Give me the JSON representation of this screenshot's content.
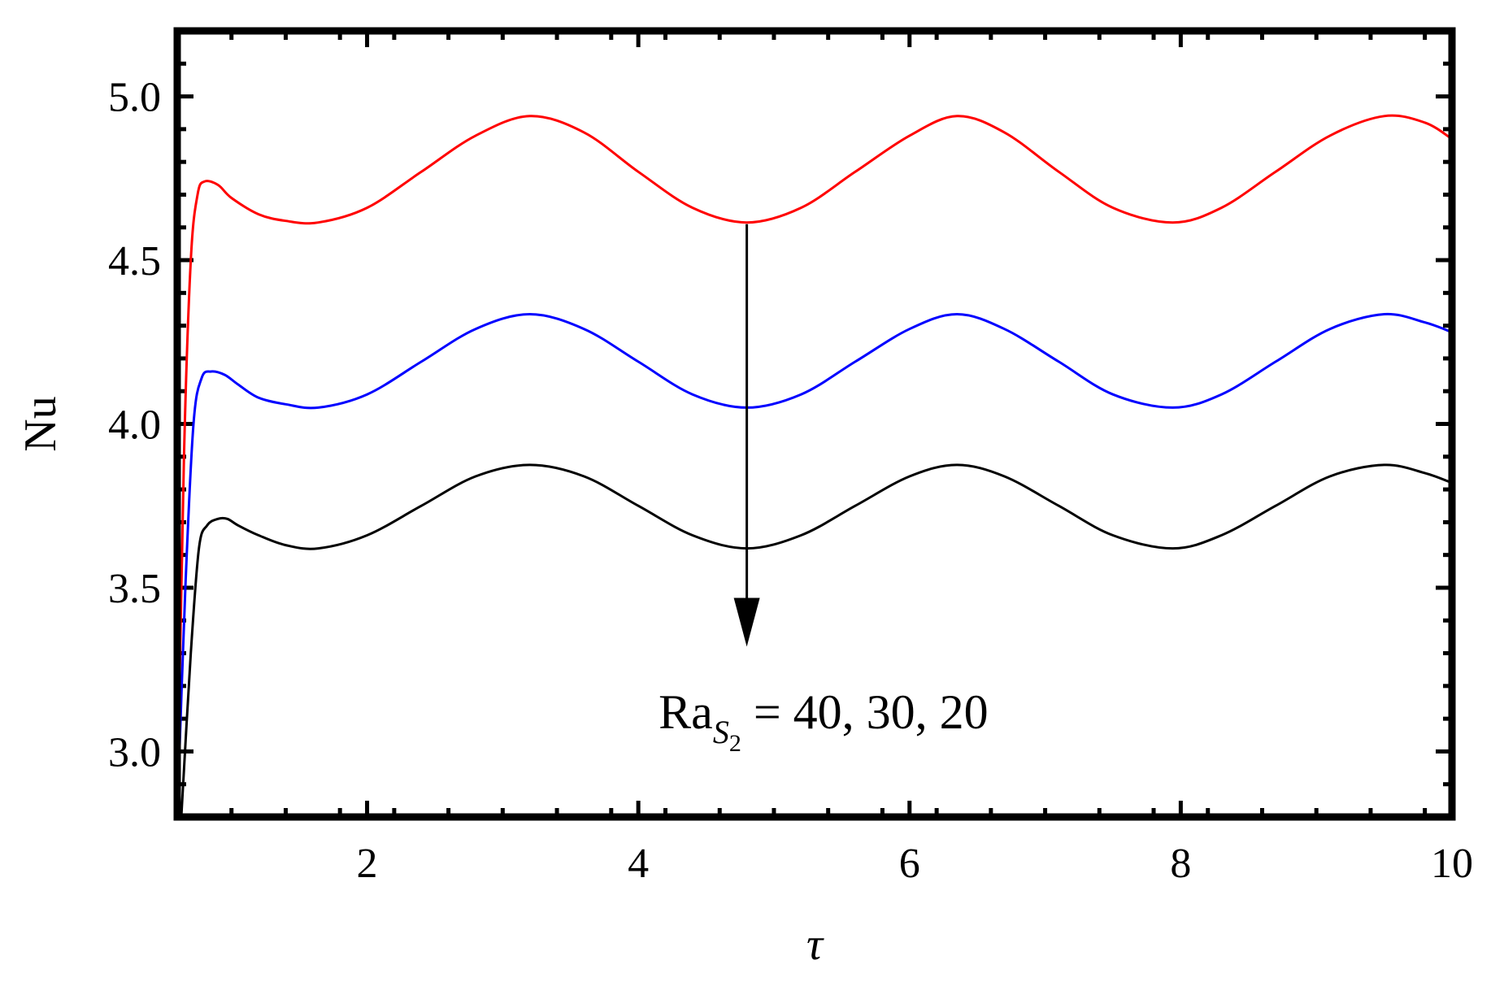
{
  "chart_data": {
    "type": "line",
    "xlabel": "τ",
    "ylabel": "Nu",
    "xlim": [
      0.6,
      10
    ],
    "ylim": [
      2.8,
      5.2
    ],
    "x_ticks": [
      2,
      4,
      6,
      8,
      10
    ],
    "x_tick_labels": [
      "2",
      "4",
      "6",
      "8",
      "10"
    ],
    "y_ticks": [
      3.0,
      3.5,
      4.0,
      4.5,
      5.0
    ],
    "y_tick_labels": [
      "3.0",
      "3.5",
      "4.0",
      "4.5",
      "5.0"
    ],
    "grid": false,
    "legend": "none",
    "series": [
      {
        "color": "#ff0000",
        "x": [
          0.6,
          0.65,
          0.7,
          0.75,
          0.8,
          0.9,
          1.0,
          1.2,
          1.4,
          1.64,
          2.0,
          2.4,
          2.8,
          3.2,
          3.6,
          4.0,
          4.4,
          4.8,
          5.2,
          5.6,
          6.0,
          6.35,
          6.7,
          7.1,
          7.5,
          7.94,
          8.3,
          8.7,
          9.1,
          9.5,
          9.8,
          10.0
        ],
        "y": [
          2.8,
          3.9,
          4.5,
          4.7,
          4.74,
          4.73,
          4.69,
          4.64,
          4.62,
          4.615,
          4.66,
          4.77,
          4.88,
          4.94,
          4.89,
          4.77,
          4.66,
          4.615,
          4.66,
          4.77,
          4.88,
          4.94,
          4.89,
          4.77,
          4.66,
          4.615,
          4.66,
          4.77,
          4.88,
          4.94,
          4.92,
          4.87
        ]
      },
      {
        "color": "#0000ff",
        "x": [
          0.6,
          0.66,
          0.72,
          0.78,
          0.85,
          0.95,
          1.05,
          1.2,
          1.4,
          1.64,
          2.0,
          2.4,
          2.8,
          3.2,
          3.6,
          4.0,
          4.4,
          4.8,
          5.2,
          5.6,
          6.0,
          6.35,
          6.7,
          7.1,
          7.5,
          7.94,
          8.3,
          8.7,
          9.1,
          9.5,
          9.8,
          10.0
        ],
        "y": [
          2.8,
          3.5,
          4.0,
          4.14,
          4.16,
          4.15,
          4.12,
          4.08,
          4.06,
          4.05,
          4.09,
          4.19,
          4.29,
          4.335,
          4.29,
          4.19,
          4.09,
          4.05,
          4.09,
          4.19,
          4.29,
          4.335,
          4.29,
          4.19,
          4.09,
          4.05,
          4.09,
          4.19,
          4.29,
          4.335,
          4.31,
          4.28
        ]
      },
      {
        "color": "#000000",
        "x": [
          0.63,
          0.7,
          0.76,
          0.82,
          0.9,
          0.97,
          1.05,
          1.2,
          1.4,
          1.64,
          2.0,
          2.4,
          2.8,
          3.2,
          3.6,
          4.0,
          4.4,
          4.8,
          5.2,
          5.6,
          6.0,
          6.35,
          6.7,
          7.1,
          7.5,
          7.94,
          8.3,
          8.7,
          9.1,
          9.5,
          9.8,
          10.0
        ],
        "y": [
          2.8,
          3.3,
          3.62,
          3.69,
          3.71,
          3.71,
          3.69,
          3.66,
          3.63,
          3.62,
          3.66,
          3.75,
          3.84,
          3.875,
          3.84,
          3.75,
          3.66,
          3.62,
          3.66,
          3.75,
          3.84,
          3.875,
          3.84,
          3.75,
          3.66,
          3.62,
          3.66,
          3.75,
          3.84,
          3.875,
          3.85,
          3.82
        ]
      }
    ],
    "annotation": {
      "arrow_x": 4.8,
      "arrow_y_start": 4.61,
      "arrow_y_end": 3.32,
      "label_main": "Ra",
      "label_sub_main": "S",
      "label_sub_sub": "2",
      "label_rest": " =  40,  30,  20",
      "label_x": 4.15,
      "label_y": 3.07
    }
  }
}
